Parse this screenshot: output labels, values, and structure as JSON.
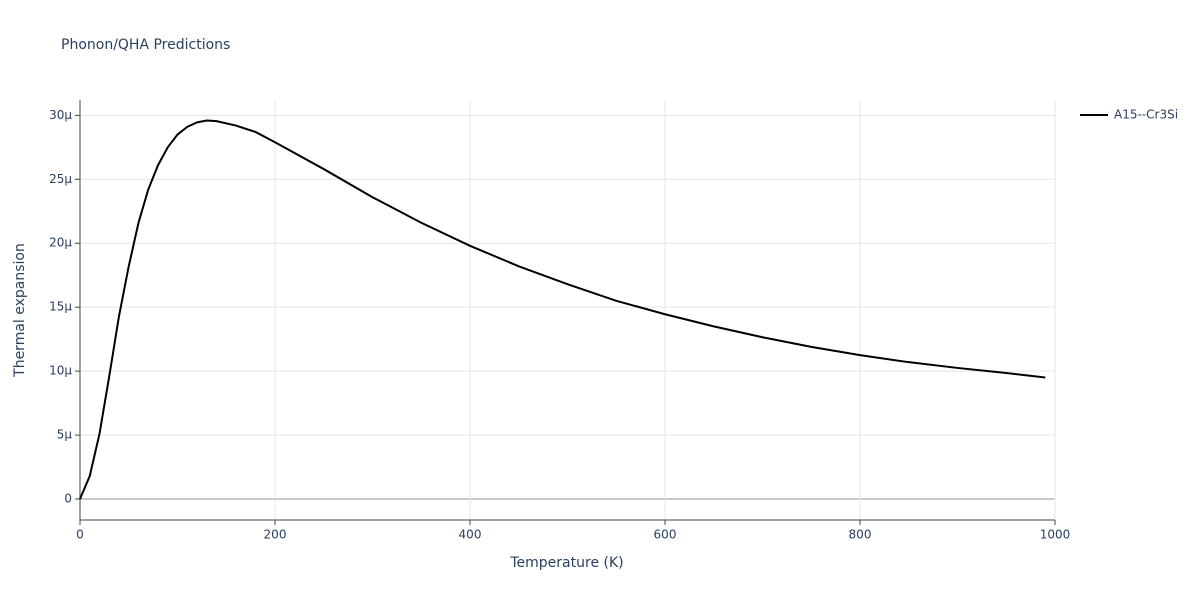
{
  "chart_data": {
    "type": "line",
    "title": "Phonon/QHA Predictions",
    "x_label": "Temperature (K)",
    "y_label": "Thermal expansion",
    "x": [
      0,
      10,
      20,
      30,
      40,
      50,
      60,
      70,
      80,
      90,
      100,
      110,
      120,
      130,
      140,
      160,
      180,
      200,
      250,
      300,
      350,
      400,
      450,
      500,
      550,
      600,
      650,
      700,
      750,
      800,
      850,
      900,
      950,
      990
    ],
    "series": [
      {
        "name": "A15--Cr3Si",
        "color": "#000000",
        "values": [
          0,
          1.8e-06,
          5.1e-06,
          9.6e-06,
          1.43e-05,
          1.82e-05,
          2.16e-05,
          2.42e-05,
          2.61e-05,
          2.75e-05,
          2.85e-05,
          2.91e-05,
          2.945e-05,
          2.96e-05,
          2.955e-05,
          2.92e-05,
          2.87e-05,
          2.79e-05,
          2.58e-05,
          2.36e-05,
          2.16e-05,
          1.98e-05,
          1.82e-05,
          1.68e-05,
          1.55e-05,
          1.445e-05,
          1.35e-05,
          1.265e-05,
          1.19e-05,
          1.125e-05,
          1.07e-05,
          1.025e-05,
          9.85e-06,
          9.5e-06
        ]
      }
    ],
    "xlim": [
      0,
      1000
    ],
    "xticks": [
      0,
      200,
      400,
      600,
      800,
      1000
    ],
    "ylim": [
      -1.64e-06,
      3.12e-05
    ],
    "yticks": [
      {
        "value": 0,
        "label": "0"
      },
      {
        "value": 5e-06,
        "label": "5µ"
      },
      {
        "value": 1e-05,
        "label": "10µ"
      },
      {
        "value": 1.5e-05,
        "label": "15µ"
      },
      {
        "value": 2e-05,
        "label": "20µ"
      },
      {
        "value": 2.5e-05,
        "label": "25µ"
      },
      {
        "value": 3e-05,
        "label": "30µ"
      }
    ],
    "grid": true,
    "legend": "right"
  }
}
